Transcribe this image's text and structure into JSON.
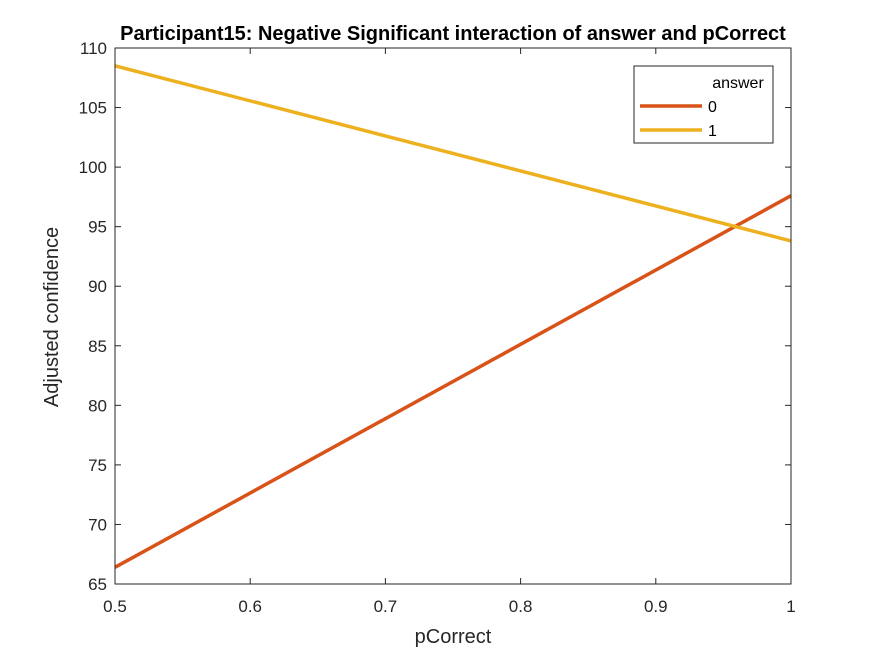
{
  "chart_data": {
    "type": "line",
    "title": "Participant15: Negative Significant interaction of answer and pCorrect",
    "xlabel": "pCorrect",
    "ylabel": "Adjusted confidence",
    "xlim": [
      0.5,
      1
    ],
    "ylim": [
      65,
      110
    ],
    "x_ticks": [
      0.5,
      0.6,
      0.7,
      0.8,
      0.9,
      1
    ],
    "x_tick_labels": [
      "0.5",
      "0.6",
      "0.7",
      "0.8",
      "0.9",
      "1"
    ],
    "y_ticks": [
      65,
      70,
      75,
      80,
      85,
      90,
      95,
      100,
      105,
      110
    ],
    "y_tick_labels": [
      "65",
      "70",
      "75",
      "80",
      "85",
      "90",
      "95",
      "100",
      "105",
      "110"
    ],
    "grid": false,
    "legend": {
      "title": "answer",
      "placement": "top-right"
    },
    "series": [
      {
        "name": "0",
        "color": "#D95319",
        "x": [
          0.5,
          1
        ],
        "y": [
          66.4,
          97.6
        ]
      },
      {
        "name": "1",
        "color": "#EDB120",
        "x": [
          0.5,
          1
        ],
        "y": [
          108.5,
          93.8
        ]
      }
    ]
  }
}
